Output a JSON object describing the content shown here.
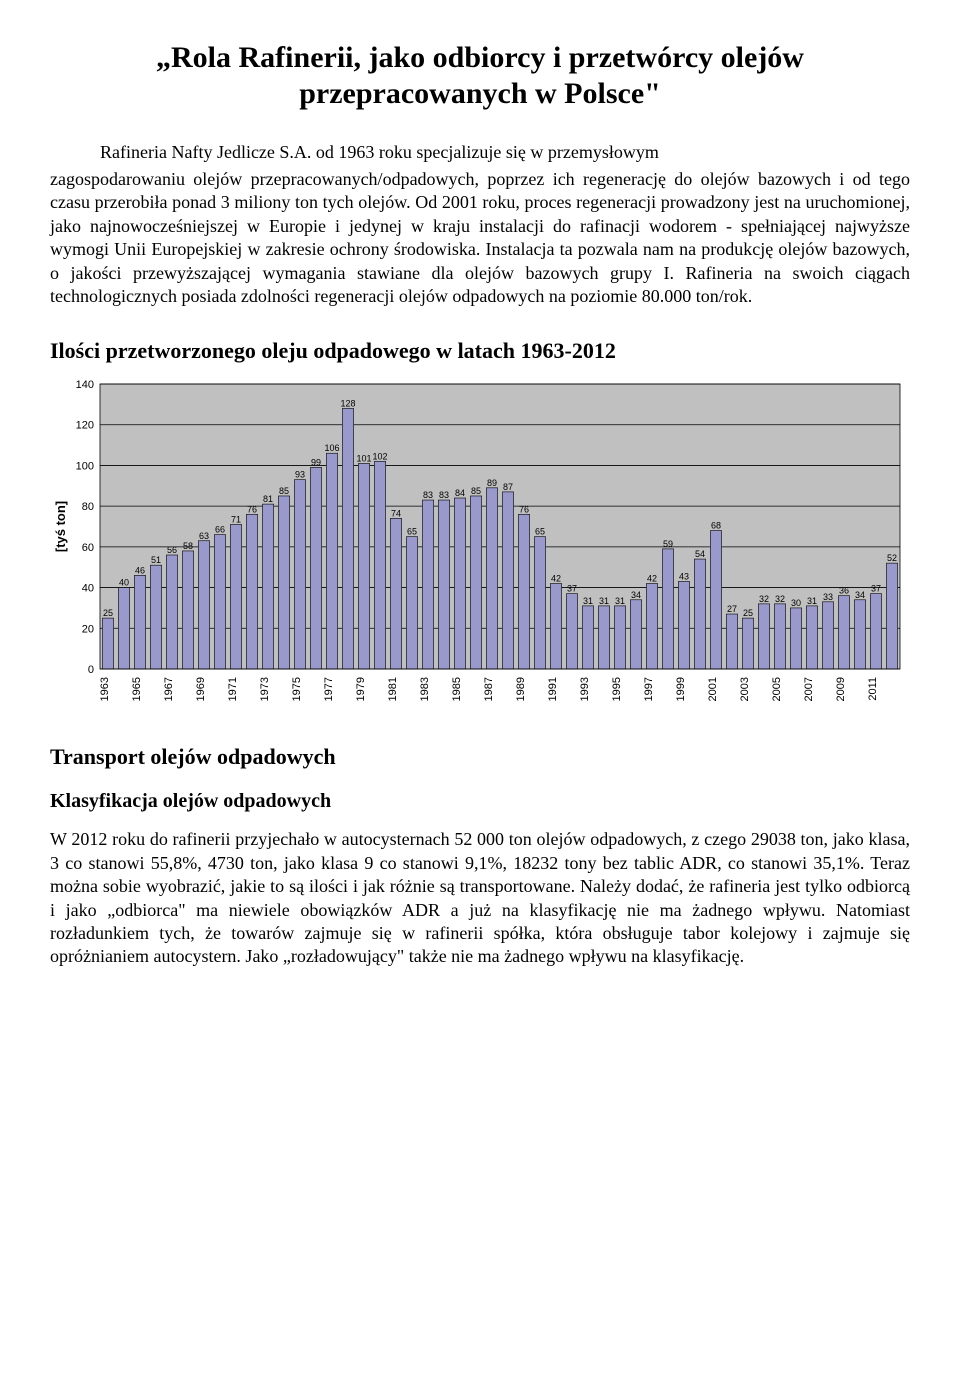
{
  "title": "„Rola Rafinerii, jako odbiorcy i przetwórcy olejów przepracowanych w Polsce\"",
  "company_line": "Rafineria Nafty Jedlicze S.A. od 1963 roku specjalizuje się w przemysłowym",
  "body": "zagospodarowaniu olejów przepracowanych/odpadowych, poprzez ich regenerację do olejów bazowych i od tego czasu przerobiła ponad 3 miliony ton tych olejów. Od 2001 roku, proces regeneracji prowadzony jest na uruchomionej, jako najnowocześniejszej w Europie i jedynej w kraju instalacji do rafinacji wodorem - spełniającej najwyższe wymogi Unii Europejskiej w zakresie ochrony środowiska. Instalacja ta pozwala nam na produkcję olejów bazowych, o jakości przewyższającej wymagania stawiane dla olejów bazowych grupy I. Rafineria na swoich ciągach technologicznych posiada zdolności regeneracji olejów odpadowych na poziomie 80.000 ton/rok.",
  "chart_heading": "Ilości przetworzonego oleju odpadowego w latach 1963-2012",
  "transport_heading": "Transport olejów odpadowych",
  "klas_heading": "Klasyfikacja olejów odpadowych",
  "klas_body": "W 2012 roku do rafinerii przyjechało w autocysternach 52 000 ton olejów odpadowych, z czego 29038 ton, jako klasa, 3 co stanowi 55,8%, 4730 ton, jako klasa 9 co stanowi 9,1%, 18232 tony bez tablic ADR, co stanowi 35,1%. Teraz można sobie wyobrazić, jakie to są ilości i jak różnie są transportowane. Należy dodać, że rafineria jest tylko odbiorcą i jako „odbiorca\" ma niewiele obowiązków ADR a już na klasyfikację nie ma żadnego wpływu. Natomiast rozładunkiem tych, że towarów zajmuje się w rafinerii spółka, która obsługuje tabor kolejowy i zajmuje się opróżnianiem autocystern. Jako „rozładowujący\" także nie ma żadnego wpływu na klasyfikację.",
  "chart": {
    "type": "bar",
    "ylabel": "[tyś ton]",
    "ylim": [
      0,
      140
    ],
    "ytick_step": 20,
    "yticks": [
      0,
      20,
      40,
      60,
      80,
      100,
      120,
      140
    ],
    "xticks": [
      1963,
      1965,
      1967,
      1969,
      1971,
      1973,
      1975,
      1977,
      1979,
      1981,
      1983,
      1985,
      1987,
      1989,
      1991,
      1993,
      1995,
      1997,
      1999,
      2001,
      2003,
      2005,
      2007,
      2009,
      2011
    ],
    "years": [
      1963,
      1964,
      1965,
      1966,
      1967,
      1968,
      1969,
      1970,
      1971,
      1972,
      1973,
      1974,
      1975,
      1976,
      1977,
      1978,
      1979,
      1980,
      1981,
      1982,
      1983,
      1984,
      1985,
      1986,
      1987,
      1988,
      1989,
      1990,
      1991,
      1992,
      1993,
      1994,
      1995,
      1996,
      1997,
      1998,
      1999,
      2000,
      2001,
      2002,
      2003,
      2004,
      2005,
      2006,
      2007,
      2008,
      2009,
      2010,
      2011,
      2012
    ],
    "values": [
      25,
      40,
      46,
      51,
      56,
      58,
      63,
      66,
      71,
      76,
      81,
      85,
      93,
      99,
      106,
      128,
      101,
      102,
      74,
      65,
      83,
      83,
      84,
      85,
      89,
      87,
      76,
      65,
      42,
      37,
      31,
      31,
      31,
      34,
      42,
      59,
      43,
      54,
      68,
      27,
      25,
      32,
      32,
      30,
      31,
      33,
      36,
      34,
      37,
      52
    ],
    "bar_color": "#9999cc",
    "bar_border_color": "#000000",
    "background_color": "#c0c0c0",
    "grid_color": "#000000",
    "label_fontsize": 9,
    "axis_fontsize": 11,
    "ylabel_fontsize": 13
  }
}
